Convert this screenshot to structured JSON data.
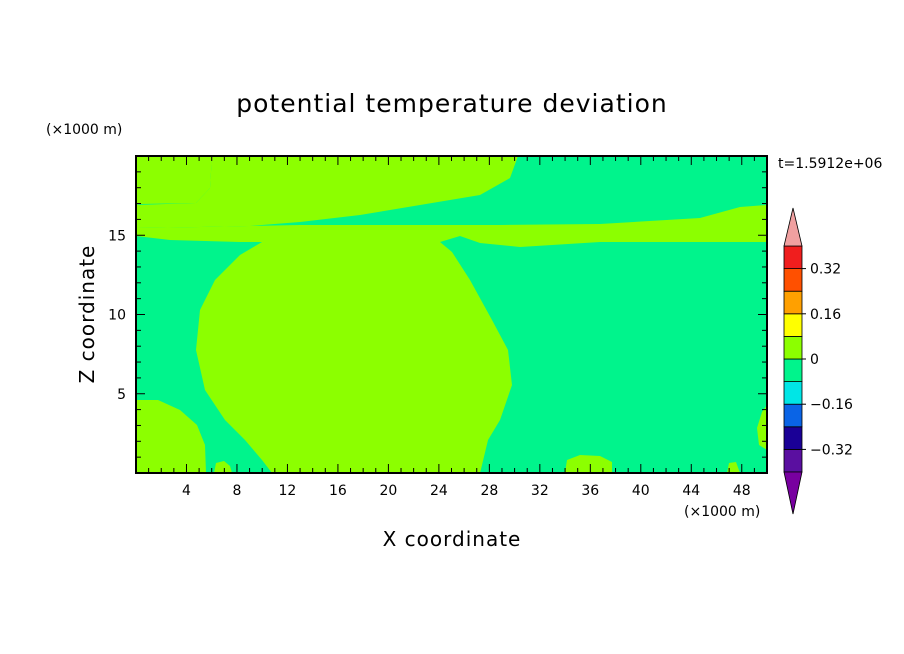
{
  "chart_data": {
    "type": "heatmap",
    "title": "potential temperature deviation",
    "xlabel": "X coordinate",
    "ylabel": "Z coordinate",
    "x_unit": "(×1000 m)",
    "y_unit": "(×1000 m)",
    "time_label": "t=1.5912e+06",
    "xlim": [
      0,
      50
    ],
    "ylim": [
      0,
      20
    ],
    "x_ticks": [
      4,
      8,
      12,
      16,
      20,
      24,
      28,
      32,
      36,
      40,
      44,
      48
    ],
    "y_ticks": [
      5,
      10,
      15
    ],
    "colorbar": {
      "levels": [
        -0.4,
        -0.32,
        -0.24,
        -0.16,
        -0.08,
        0,
        0.08,
        0.16,
        0.24,
        0.32,
        0.4
      ],
      "labels": [
        {
          "value": 0.32,
          "text": "0.32"
        },
        {
          "value": 0.16,
          "text": "0.16"
        },
        {
          "value": 0,
          "text": "0"
        },
        {
          "value": -0.16,
          "text": "−0.16"
        },
        {
          "value": -0.32,
          "text": "−0.32"
        }
      ],
      "colors": [
        "#5a0fa0",
        "#1a0096",
        "#0a64e6",
        "#00e6e6",
        "#00f48c",
        "#8cff00",
        "#ffff00",
        "#ffa000",
        "#ff5000",
        "#f01e1e"
      ],
      "over_color": "#f0a0a0",
      "under_color": "#7800a0"
    },
    "regions": {
      "background_color": "#00f48c",
      "positive_color": "#8cff00"
    }
  }
}
